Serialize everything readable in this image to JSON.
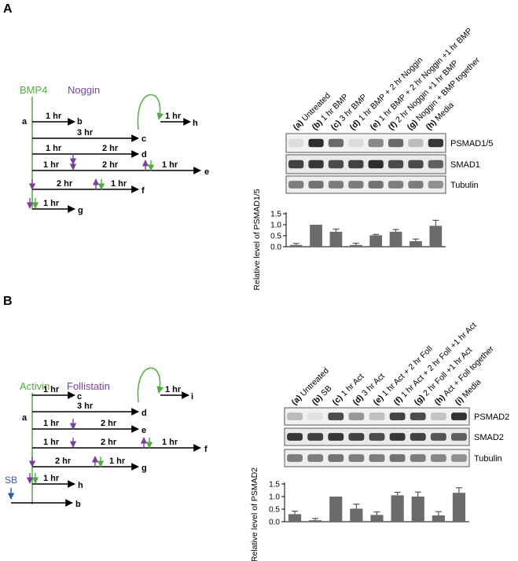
{
  "colors": {
    "green": "#4fae3f",
    "purple": "#7b3f9b",
    "blue": "#2b5aa8",
    "bar": "#6b6b6b",
    "black": "#000000"
  },
  "panel_a": {
    "letter": "A",
    "agent1": "BMP4",
    "agent2": "Noggin",
    "points": [
      "a",
      "b",
      "c",
      "d",
      "e",
      "f",
      "g",
      "h"
    ],
    "durations": {
      "b": "1 hr",
      "c": "3 hr",
      "d1": "1 hr",
      "d2": "2 hr",
      "e1": "1 hr",
      "e2": "2 hr",
      "e3": "1 hr",
      "f1": "2 hr",
      "f2": "1 hr",
      "g": "1 hr",
      "h": "1 hr"
    },
    "lanes": [
      {
        "letter": "(a)",
        "text": " Untreated"
      },
      {
        "letter": "(b)",
        "text": " 1 hr BMP"
      },
      {
        "letter": "(c)",
        "text": " 3 hr BMP"
      },
      {
        "letter": "(d)",
        "text": " 1 hr BMP + 2 hr Noggin"
      },
      {
        "letter": "(e)",
        "text": " 1 hr BMP + 2 hr Noggin +1 hr BMP"
      },
      {
        "letter": "(f)",
        "text": " 2 hr Noggin +1 hr BMP"
      },
      {
        "letter": "(g)",
        "text": " Noggin + BMP together"
      },
      {
        "letter": "(h)",
        "text": " Media"
      }
    ],
    "blot_labels": [
      "PSMAD1/5",
      "SMAD1",
      "Tubulin"
    ]
  },
  "panel_b": {
    "letter": "B",
    "agent1": "Activin",
    "agent2": "Follistatin",
    "agent3": "SB",
    "points": [
      "a",
      "b",
      "c",
      "d",
      "e",
      "f",
      "g",
      "h",
      "i"
    ],
    "durations": {
      "c": "1 hr",
      "d": "3 hr",
      "e1": "1 hr",
      "e2": "2 hr",
      "f1": "1 hr",
      "f2": "2 hr",
      "f3": "1 hr",
      "g1": "2 hr",
      "g2": "1 hr",
      "h": "1 hr",
      "i": "1 hr"
    },
    "lanes": [
      {
        "letter": "(a)",
        "text": " Untreated"
      },
      {
        "letter": "(b)",
        "text": " SB"
      },
      {
        "letter": "(c)",
        "text": " 1 hr Act"
      },
      {
        "letter": "(d)",
        "text": " 3 hr Act"
      },
      {
        "letter": "(e)",
        "text": " 1 hr Act + 2 hr Foll"
      },
      {
        "letter": "(f)",
        "text": " 1 hr Act + 2 hr Foll +1 hr Act"
      },
      {
        "letter": "(g)",
        "text": " 2 hr Foll +1 hr Act"
      },
      {
        "letter": "(h)",
        "text": " Act + Foll together"
      },
      {
        "letter": "(i)",
        "text": " Media"
      }
    ],
    "blot_labels": [
      "PSMAD2",
      "SMAD2",
      "Tubulin"
    ]
  },
  "chart_data": [
    {
      "type": "bar",
      "categories": [
        "a",
        "b",
        "c",
        "d",
        "e",
        "f",
        "g",
        "h"
      ],
      "values": [
        0.08,
        1.0,
        0.68,
        0.08,
        0.52,
        0.68,
        0.25,
        0.95
      ],
      "errors": [
        0.07,
        0.0,
        0.12,
        0.08,
        0.04,
        0.1,
        0.1,
        0.25
      ],
      "ylabel": "Relative level of PSMAD1/5",
      "yticks": [
        "0.0",
        "0.5",
        "1.0",
        "1.5"
      ],
      "ylim": [
        0,
        1.5
      ]
    },
    {
      "type": "bar",
      "categories": [
        "a",
        "b",
        "c",
        "d",
        "e",
        "f",
        "g",
        "h",
        "i"
      ],
      "values": [
        0.3,
        0.06,
        1.0,
        0.52,
        0.27,
        1.05,
        1.0,
        0.25,
        1.15
      ],
      "errors": [
        0.12,
        0.07,
        0.0,
        0.18,
        0.12,
        0.12,
        0.18,
        0.15,
        0.2
      ],
      "ylabel": "Relative level of PSMAD2",
      "yticks": [
        "0.0",
        "0.5",
        "1.0",
        "1.5"
      ],
      "ylim": [
        0,
        1.5
      ]
    }
  ]
}
